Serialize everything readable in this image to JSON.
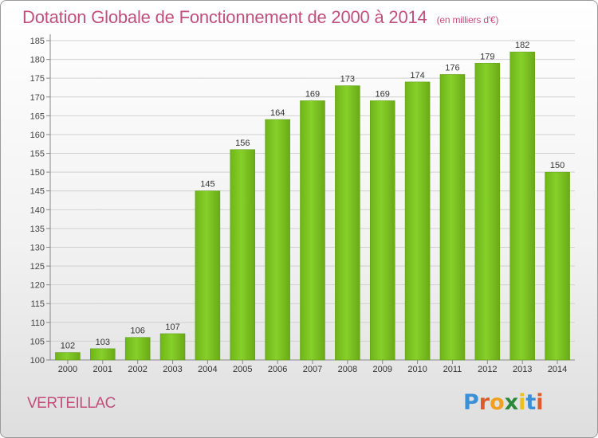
{
  "title": "Dotation Globale de Fonctionnement de 2000 à 2014",
  "subtitle": "(en milliers d'€)",
  "commune": "VERTEILLAC",
  "logo": {
    "letters": [
      "P",
      "r",
      "o",
      "x",
      "i",
      "t",
      "i"
    ],
    "colors": [
      "#3a8fd6",
      "#e05a2a",
      "#f0a020",
      "#2a8a3a",
      "#e8c020",
      "#3a8fd6",
      "#e05a2a"
    ]
  },
  "colors": {
    "bar": "#7cc520",
    "bar_dark": "#5a9a10",
    "text": "#c0507a"
  },
  "chart_data": {
    "type": "bar",
    "title": "Dotation Globale de Fonctionnement de 2000 à 2014",
    "subtitle": "(en milliers d'€)",
    "categories": [
      "2000",
      "2001",
      "2002",
      "2003",
      "2004",
      "2005",
      "2006",
      "2007",
      "2008",
      "2009",
      "2010",
      "2011",
      "2012",
      "2013",
      "2014"
    ],
    "values": [
      102,
      103,
      106,
      107,
      145,
      156,
      164,
      169,
      173,
      169,
      174,
      176,
      179,
      182,
      150
    ],
    "ylim": [
      100,
      185
    ],
    "yticks": [
      100,
      105,
      110,
      115,
      120,
      125,
      130,
      135,
      140,
      145,
      150,
      155,
      160,
      165,
      170,
      175,
      180,
      185
    ],
    "grid": true,
    "xlabel": "",
    "ylabel": ""
  }
}
